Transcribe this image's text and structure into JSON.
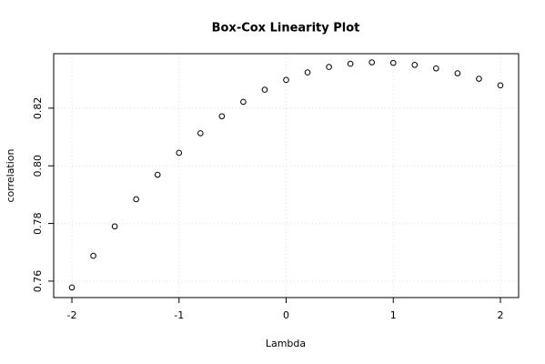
{
  "chart_data": {
    "type": "scatter",
    "title": "Box-Cox Linearity Plot",
    "x_label": "Lambda",
    "y_label": "correlation",
    "x": [
      -2,
      -1.8,
      -1.6,
      -1.4,
      -1.2,
      -1,
      -0.8,
      -0.6,
      -0.4,
      -0.2,
      0,
      0.2,
      0.4,
      0.6,
      0.8,
      1,
      1.2,
      1.4,
      1.6,
      1.8,
      2
    ],
    "values": [
      0.7578,
      0.7688,
      0.779,
      0.7884,
      0.7969,
      0.8045,
      0.8113,
      0.8172,
      0.8222,
      0.8264,
      0.8298,
      0.8324,
      0.8343,
      0.8354,
      0.8359,
      0.8357,
      0.835,
      0.8338,
      0.8321,
      0.8302,
      0.8279
    ],
    "color": "#000000",
    "xlim": [
      -2.17,
      2.17
    ],
    "xticks": [
      -2,
      -1,
      0,
      1,
      2
    ],
    "ylim": [
      0.7543,
      0.8389
    ],
    "yticks": [
      0.76,
      0.78,
      {
        "value": 0.8,
        "label": "0.80"
      },
      0.82
    ],
    "grid": true
  }
}
